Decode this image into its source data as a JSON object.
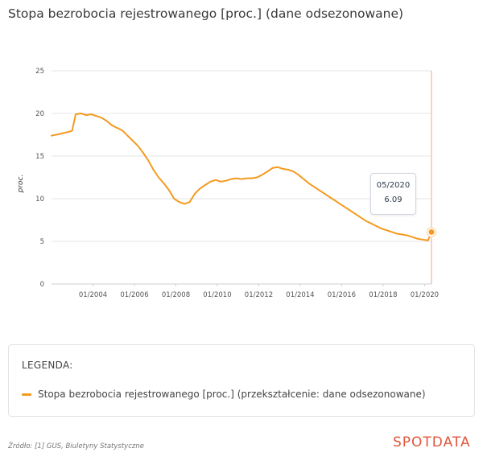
{
  "title": "Stopa bezrobocia rejestrowanego [proc.] (dane odsezonowane)",
  "tooltip": {
    "date": "05/2020",
    "value": "6.09"
  },
  "legend": {
    "heading": "LEGENDA:",
    "entry": "Stopa bezrobocia rejestrowanego [proc.] (przekształcenie: dane odsezonowane)"
  },
  "footer": {
    "source": "Źródło: [1] GUS, Biuletyny Statystyczne",
    "brand": "SPOTDATA"
  },
  "colors": {
    "series": "#f39a1f",
    "cursor": "#f0a58a",
    "grid": "#e6e6e6",
    "brand": "#e2563c"
  },
  "chart_data": {
    "type": "line",
    "title": "Stopa bezrobocia rejestrowanego [proc.] (dane odsezonowane)",
    "xlabel": "",
    "ylabel": "proc.",
    "ylim": [
      0,
      25
    ],
    "xlim": [
      "2002-01",
      "2020-05"
    ],
    "y_ticks": [
      "0",
      "5",
      "10",
      "15",
      "20",
      "25"
    ],
    "x_ticks": [
      "01/2004",
      "01/2006",
      "01/2008",
      "01/2010",
      "01/2012",
      "01/2014",
      "01/2016",
      "01/2018",
      "01/2020"
    ],
    "x_tick_dates": [
      "2004-01",
      "2006-01",
      "2008-01",
      "2010-01",
      "2012-01",
      "2014-01",
      "2016-01",
      "2018-01",
      "2020-01"
    ],
    "grid": true,
    "legend_position": "bottom",
    "series": [
      {
        "name": "Stopa bezrobocia rejestrowanego [proc.] (przekształcenie: dane odsezonowane)",
        "x": [
          "2002-01",
          "2002-06",
          "2002-12",
          "2003-01",
          "2003-03",
          "2003-06",
          "2003-09",
          "2003-12",
          "2004-03",
          "2004-06",
          "2004-09",
          "2004-12",
          "2005-03",
          "2005-06",
          "2005-09",
          "2005-12",
          "2006-03",
          "2006-06",
          "2006-09",
          "2006-12",
          "2007-03",
          "2007-06",
          "2007-09",
          "2007-12",
          "2008-03",
          "2008-06",
          "2008-09",
          "2008-12",
          "2009-03",
          "2009-06",
          "2009-09",
          "2009-12",
          "2010-03",
          "2010-06",
          "2010-09",
          "2010-12",
          "2011-03",
          "2011-06",
          "2011-09",
          "2011-12",
          "2012-03",
          "2012-06",
          "2012-09",
          "2012-12",
          "2013-03",
          "2013-06",
          "2013-09",
          "2013-12",
          "2014-03",
          "2014-06",
          "2014-09",
          "2014-12",
          "2015-03",
          "2015-06",
          "2015-09",
          "2015-12",
          "2016-03",
          "2016-06",
          "2016-09",
          "2016-12",
          "2017-03",
          "2017-06",
          "2017-09",
          "2017-12",
          "2018-03",
          "2018-06",
          "2018-09",
          "2018-12",
          "2019-03",
          "2019-06",
          "2019-09",
          "2019-12",
          "2020-03",
          "2020-05"
        ],
        "values": [
          17.4,
          17.6,
          17.9,
          18.0,
          19.9,
          20.0,
          19.8,
          19.9,
          19.7,
          19.5,
          19.1,
          18.6,
          18.3,
          18.0,
          17.4,
          16.8,
          16.2,
          15.4,
          14.5,
          13.4,
          12.5,
          11.8,
          11.0,
          10.0,
          9.6,
          9.4,
          9.6,
          10.6,
          11.2,
          11.6,
          12.0,
          12.2,
          12.0,
          12.1,
          12.3,
          12.4,
          12.3,
          12.4,
          12.4,
          12.5,
          12.8,
          13.2,
          13.6,
          13.7,
          13.5,
          13.4,
          13.2,
          12.8,
          12.3,
          11.8,
          11.4,
          11.0,
          10.6,
          10.2,
          9.8,
          9.4,
          9.0,
          8.6,
          8.2,
          7.8,
          7.4,
          7.1,
          6.8,
          6.5,
          6.3,
          6.1,
          5.9,
          5.8,
          5.7,
          5.5,
          5.3,
          5.2,
          5.1,
          6.09
        ]
      }
    ]
  }
}
